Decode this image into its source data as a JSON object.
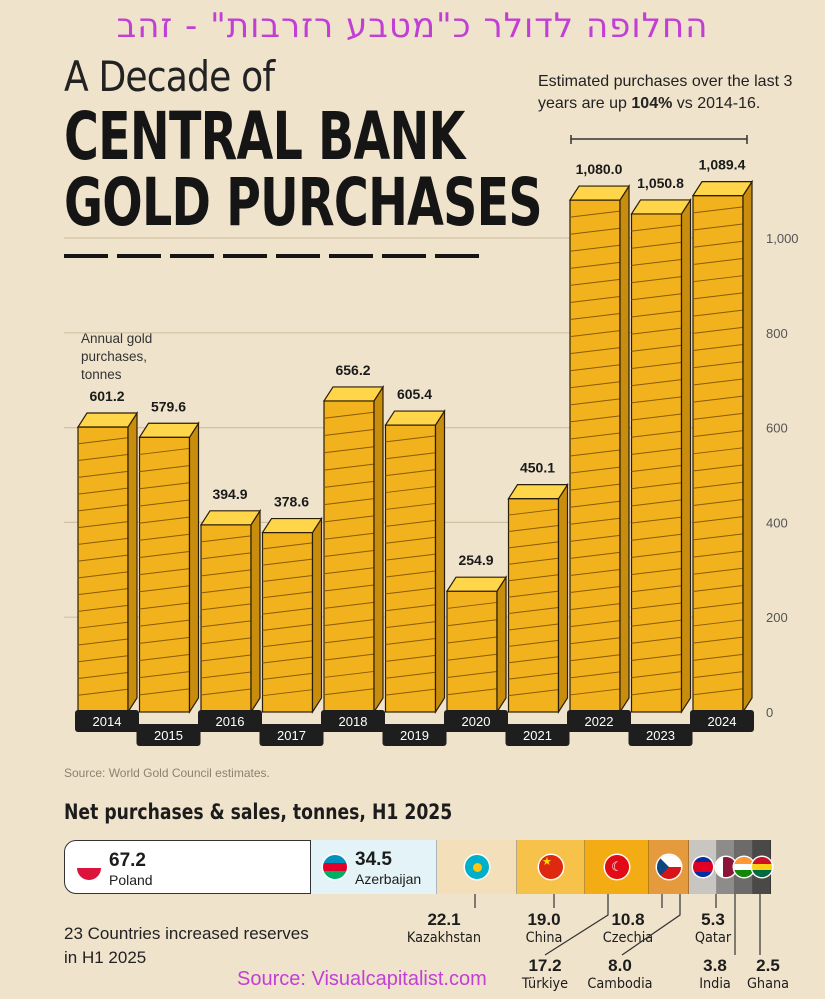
{
  "overlay_title": "החלופה לדולר כ\"מטבע רזרבות\" - זהב",
  "header": {
    "kicker": "A Decade of",
    "title_line1": "CENTRAL BANK",
    "title_line2": "GOLD PURCHASES"
  },
  "note": {
    "prefix": "Estimated purchases over the last 3 years are up ",
    "highlight": "104%",
    "suffix": " vs 2014-16."
  },
  "chart_data": {
    "type": "bar",
    "title": "A Decade of CENTRAL BANK GOLD PURCHASES",
    "ylabel": "Annual gold purchases, tonnes",
    "categories": [
      "2014",
      "2015",
      "2016",
      "2017",
      "2018",
      "2019",
      "2020",
      "2021",
      "2022",
      "2023",
      "2024"
    ],
    "values": [
      601.2,
      579.6,
      394.9,
      378.6,
      656.2,
      605.4,
      254.9,
      450.1,
      1080.0,
      1050.8,
      1089.4
    ],
    "value_labels": [
      "601.2",
      "579.6",
      "394.9",
      "378.6",
      "656.2",
      "605.4",
      "254.9",
      "450.1",
      "1,080.0",
      "1,050.8",
      "1,089.4"
    ],
    "ylim": [
      0,
      1100
    ],
    "y_ticks": [
      0,
      200,
      400,
      600,
      800,
      1000
    ],
    "y_tick_labels": [
      "0",
      "200",
      "400",
      "600",
      "800",
      "1,000"
    ],
    "grid": true,
    "bar_color": "#f2b21d",
    "bar_edge_color": "#2a1d05"
  },
  "source": "Source: World Gold Council estimates.",
  "net": {
    "title": "Net purchases & sales, tonnes, H1 2025",
    "countries": [
      {
        "name": "Poland",
        "value": "67.2",
        "color": "#ffffff"
      },
      {
        "name": "Azerbaijan",
        "value": "34.5",
        "color": "#e3f3f8"
      },
      {
        "name": "Kazakhstan",
        "value": "22.1",
        "color": "#f3dfb9"
      },
      {
        "name": "China",
        "value": "19.0",
        "color": "#f6c24a"
      },
      {
        "name": "Türkiye",
        "value": "17.2",
        "color": "#f4ac14"
      },
      {
        "name": "Czechia",
        "value": "10.8",
        "color": "#e59a3d"
      },
      {
        "name": "Cambodia",
        "value": "8.0",
        "color": "#c9c6c2"
      },
      {
        "name": "Qatar",
        "value": "5.3",
        "color": "#8e8c8a"
      },
      {
        "name": "India",
        "value": "3.8",
        "color": "#6d6b69"
      },
      {
        "name": "Ghana",
        "value": "2.5",
        "color": "#4b4947"
      }
    ],
    "increase_note": "23 Countries increased reserves in H1 2025"
  },
  "overlay_source": "Source: Visualcapitalist.com"
}
